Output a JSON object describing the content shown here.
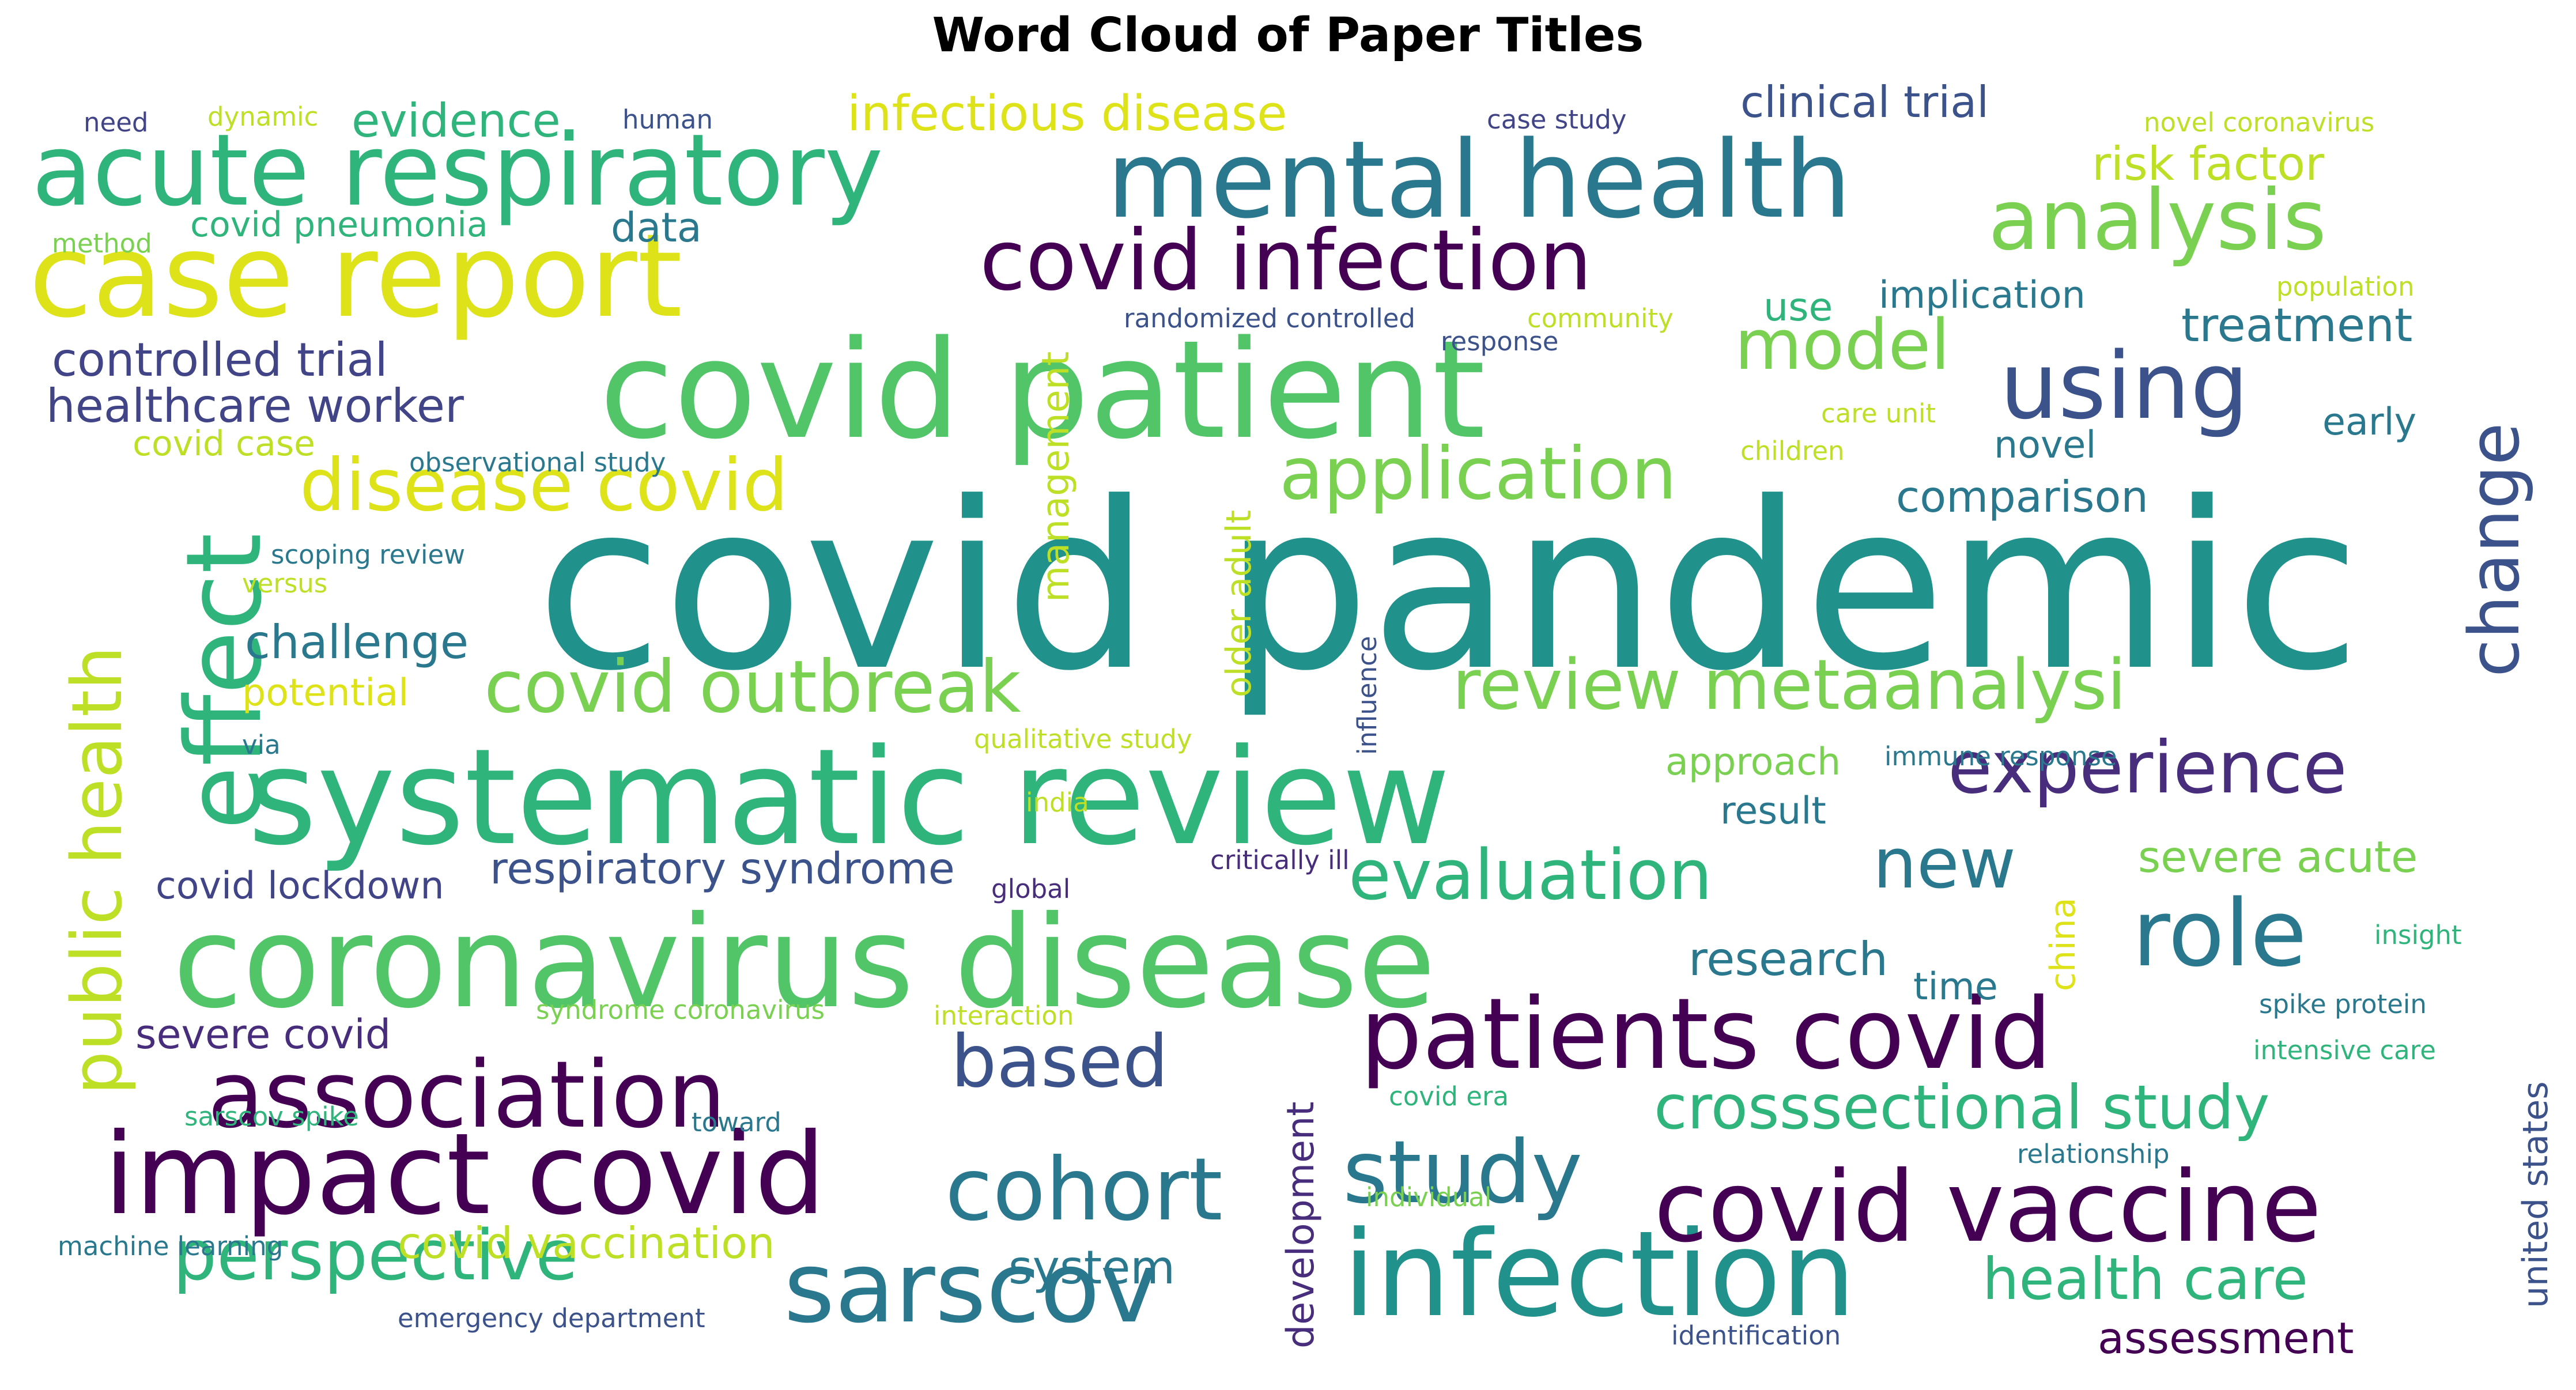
{
  "title": "Word Cloud of Paper Titles",
  "palette": {
    "yellow": "#dde318",
    "yellow_green": "#bddf26",
    "light_green": "#7ad151",
    "green": "#52c569",
    "sea_green": "#2fb47c",
    "teal": "#21918c",
    "blue_teal": "#2a788e",
    "blue": "#3b528b",
    "indigo": "#414487",
    "purple": "#472d7b",
    "dark_purple": "#440154"
  },
  "words": [
    {
      "text": "covid pandemic",
      "weight": 100
    },
    {
      "text": "systematic review",
      "weight": 70
    },
    {
      "text": "covid patient",
      "weight": 68
    },
    {
      "text": "coronavirus disease",
      "weight": 66
    },
    {
      "text": "case report",
      "weight": 62
    },
    {
      "text": "infection",
      "weight": 62
    },
    {
      "text": "mental health",
      "weight": 54
    },
    {
      "text": "acute respiratory",
      "weight": 52
    },
    {
      "text": "covid infection",
      "weight": 50
    },
    {
      "text": "impact covid",
      "weight": 50
    },
    {
      "text": "sarscov",
      "weight": 50
    },
    {
      "text": "covid vaccine",
      "weight": 50
    },
    {
      "text": "patients covid",
      "weight": 50
    },
    {
      "text": "association",
      "weight": 48
    },
    {
      "text": "effect",
      "weight": 48
    },
    {
      "text": "cohort",
      "weight": 46
    },
    {
      "text": "study",
      "weight": 46
    },
    {
      "text": "using",
      "weight": 44
    },
    {
      "text": "role",
      "weight": 44
    },
    {
      "text": "analysis",
      "weight": 42
    },
    {
      "text": "covid outbreak",
      "weight": 40
    },
    {
      "text": "disease covid",
      "weight": 40
    },
    {
      "text": "experience",
      "weight": 40
    },
    {
      "text": "application",
      "weight": 38
    },
    {
      "text": "perspective",
      "weight": 38
    },
    {
      "text": "public health",
      "weight": 38
    },
    {
      "text": "review metaanalysi",
      "weight": 38
    },
    {
      "text": "evaluation",
      "weight": 38
    },
    {
      "text": "based",
      "weight": 38
    },
    {
      "text": "change",
      "weight": 36
    },
    {
      "text": "model",
      "weight": 36
    },
    {
      "text": "new",
      "weight": 34
    },
    {
      "text": "crosssectional study",
      "weight": 32
    },
    {
      "text": "health care",
      "weight": 32
    },
    {
      "text": "infectious disease",
      "weight": 26
    },
    {
      "text": "respiratory syndrome",
      "weight": 26
    },
    {
      "text": "covid vaccination",
      "weight": 26
    },
    {
      "text": "healthcare worker",
      "weight": 26
    },
    {
      "text": "controlled trial",
      "weight": 26
    },
    {
      "text": "challenge",
      "weight": 26
    },
    {
      "text": "evidence",
      "weight": 26
    },
    {
      "text": "clinical trial",
      "weight": 26
    },
    {
      "text": "risk factor",
      "weight": 26
    },
    {
      "text": "treatment",
      "weight": 26
    },
    {
      "text": "research",
      "weight": 26
    },
    {
      "text": "severe acute",
      "weight": 26
    },
    {
      "text": "comparison",
      "weight": 26
    },
    {
      "text": "system",
      "weight": 26
    },
    {
      "text": "assessment",
      "weight": 26
    },
    {
      "text": "management",
      "weight": 24
    },
    {
      "text": "development",
      "weight": 24
    },
    {
      "text": "united states",
      "weight": 24
    },
    {
      "text": "severe covid",
      "weight": 22
    },
    {
      "text": "covid lockdown",
      "weight": 20
    },
    {
      "text": "covid pneumonia",
      "weight": 20
    },
    {
      "text": "data",
      "weight": 20
    },
    {
      "text": "use",
      "weight": 20
    },
    {
      "text": "approach",
      "weight": 20
    },
    {
      "text": "result",
      "weight": 20
    },
    {
      "text": "time",
      "weight": 20
    },
    {
      "text": "implication",
      "weight": 20
    },
    {
      "text": "novel",
      "weight": 20
    },
    {
      "text": "early",
      "weight": 20
    },
    {
      "text": "potential",
      "weight": 20
    },
    {
      "text": "covid case",
      "weight": 18
    },
    {
      "text": "older adult",
      "weight": 18
    },
    {
      "text": "china",
      "weight": 18
    },
    {
      "text": "scoping review",
      "weight": 14
    },
    {
      "text": "observational study",
      "weight": 14
    },
    {
      "text": "versus",
      "weight": 14
    },
    {
      "text": "via",
      "weight": 14
    },
    {
      "text": "qualitative study",
      "weight": 14
    },
    {
      "text": "india",
      "weight": 14
    },
    {
      "text": "immune response",
      "weight": 14
    },
    {
      "text": "critically ill",
      "weight": 14
    },
    {
      "text": "global",
      "weight": 14
    },
    {
      "text": "syndrome coronavirus",
      "weight": 14
    },
    {
      "text": "interaction",
      "weight": 14
    },
    {
      "text": "insight",
      "weight": 14
    },
    {
      "text": "spike protein",
      "weight": 14
    },
    {
      "text": "intensive care",
      "weight": 14
    },
    {
      "text": "relationship",
      "weight": 14
    },
    {
      "text": "sarscov spike",
      "weight": 14
    },
    {
      "text": "toward",
      "weight": 14
    },
    {
      "text": "covid era",
      "weight": 14
    },
    {
      "text": "individual",
      "weight": 14
    },
    {
      "text": "machine learning",
      "weight": 14
    },
    {
      "text": "emergency department",
      "weight": 14
    },
    {
      "text": "identification",
      "weight": 14
    },
    {
      "text": "influence",
      "weight": 14
    },
    {
      "text": "need",
      "weight": 14
    },
    {
      "text": "dynamic",
      "weight": 14
    },
    {
      "text": "human",
      "weight": 14
    },
    {
      "text": "case study",
      "weight": 14
    },
    {
      "text": "novel coronavirus",
      "weight": 14
    },
    {
      "text": "method",
      "weight": 14
    },
    {
      "text": "randomized controlled",
      "weight": 14
    },
    {
      "text": "community",
      "weight": 14
    },
    {
      "text": "response",
      "weight": 14
    },
    {
      "text": "population",
      "weight": 14
    },
    {
      "text": "care unit",
      "weight": 14
    },
    {
      "text": "children",
      "weight": 14
    }
  ]
}
